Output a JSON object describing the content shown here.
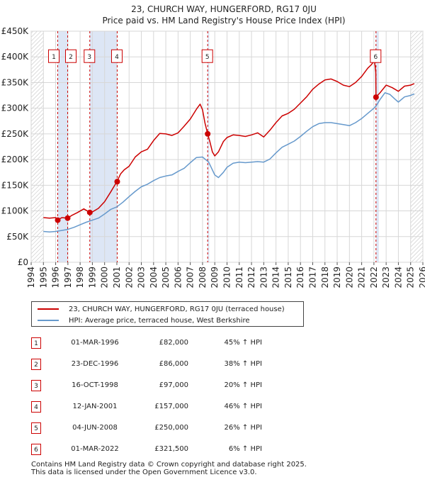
{
  "chart_data": {
    "type": "line",
    "title_line1": "23, CHURCH WAY, HUNGERFORD, RG17 0JU",
    "title_line2": "Price paid vs. HM Land Registry's House Price Index (HPI)",
    "xlim": [
      1994,
      2026
    ],
    "ylim": [
      0,
      450000
    ],
    "y_ticks": [
      {
        "value": 0,
        "label": "£0"
      },
      {
        "value": 50000,
        "label": "£50K"
      },
      {
        "value": 100000,
        "label": "£100K"
      },
      {
        "value": 150000,
        "label": "£150K"
      },
      {
        "value": 200000,
        "label": "£200K"
      },
      {
        "value": 250000,
        "label": "£250K"
      },
      {
        "value": 300000,
        "label": "£300K"
      },
      {
        "value": 350000,
        "label": "£350K"
      },
      {
        "value": 400000,
        "label": "£400K"
      },
      {
        "value": 450000,
        "label": "£450K"
      }
    ],
    "x_ticks": [
      "1994",
      "1995",
      "1996",
      "1997",
      "1998",
      "1999",
      "2000",
      "2001",
      "2002",
      "2003",
      "2004",
      "2005",
      "2006",
      "2007",
      "2008",
      "2009",
      "2010",
      "2011",
      "2012",
      "2013",
      "2014",
      "2015",
      "2016",
      "2017",
      "2018",
      "2019",
      "2020",
      "2021",
      "2022",
      "2023",
      "2024",
      "2025",
      "2026"
    ],
    "colors": {
      "price": "#cc0000",
      "hpi": "#6699cc",
      "shade": "#dde6f5",
      "grid": "#d7d7d7"
    },
    "shaded_ranges": [
      [
        1996.17,
        1996.98
      ],
      [
        1998.79,
        2001.03
      ],
      [
        2008.42,
        2008.55
      ],
      [
        2022.17,
        2022.4
      ]
    ],
    "hatched_ranges": [
      [
        1994.0,
        1995.0
      ],
      [
        2025.0,
        2026.0
      ]
    ],
    "series": [
      {
        "name": "23, CHURCH WAY, HUNGERFORD, RG17 0JU (terraced house)",
        "color": "#cc0000",
        "points": [
          [
            1995.0,
            87000
          ],
          [
            1995.5,
            86000
          ],
          [
            1996.0,
            87000
          ],
          [
            1996.17,
            82000
          ],
          [
            1996.5,
            87000
          ],
          [
            1996.98,
            86000
          ],
          [
            1997.3,
            91000
          ],
          [
            1997.8,
            97000
          ],
          [
            1998.3,
            104000
          ],
          [
            1998.79,
            97000
          ],
          [
            1999.0,
            98000
          ],
          [
            1999.5,
            105000
          ],
          [
            2000.0,
            118000
          ],
          [
            2000.5,
            137000
          ],
          [
            2001.0,
            157000
          ],
          [
            2001.3,
            172000
          ],
          [
            2001.6,
            180000
          ],
          [
            2002.0,
            187000
          ],
          [
            2002.5,
            205000
          ],
          [
            2003.0,
            215000
          ],
          [
            2003.5,
            220000
          ],
          [
            2004.0,
            237000
          ],
          [
            2004.5,
            251000
          ],
          [
            2005.0,
            250000
          ],
          [
            2005.5,
            247000
          ],
          [
            2006.0,
            252000
          ],
          [
            2006.5,
            265000
          ],
          [
            2007.0,
            279000
          ],
          [
            2007.5,
            298000
          ],
          [
            2007.8,
            308000
          ],
          [
            2008.0,
            297000
          ],
          [
            2008.2,
            271000
          ],
          [
            2008.42,
            250000
          ],
          [
            2008.6,
            235000
          ],
          [
            2008.8,
            215000
          ],
          [
            2009.0,
            207000
          ],
          [
            2009.3,
            215000
          ],
          [
            2009.7,
            235000
          ],
          [
            2010.0,
            243000
          ],
          [
            2010.5,
            248000
          ],
          [
            2011.0,
            247000
          ],
          [
            2011.5,
            245000
          ],
          [
            2012.0,
            248000
          ],
          [
            2012.5,
            252000
          ],
          [
            2013.0,
            244000
          ],
          [
            2013.5,
            257000
          ],
          [
            2014.0,
            272000
          ],
          [
            2014.5,
            285000
          ],
          [
            2015.0,
            290000
          ],
          [
            2015.5,
            298000
          ],
          [
            2016.0,
            310000
          ],
          [
            2016.5,
            322000
          ],
          [
            2017.0,
            337000
          ],
          [
            2017.5,
            347000
          ],
          [
            2018.0,
            355000
          ],
          [
            2018.5,
            357000
          ],
          [
            2019.0,
            352000
          ],
          [
            2019.5,
            345000
          ],
          [
            2020.0,
            342000
          ],
          [
            2020.5,
            350000
          ],
          [
            2021.0,
            362000
          ],
          [
            2021.5,
            378000
          ],
          [
            2021.8,
            385000
          ],
          [
            2022.05,
            393000
          ],
          [
            2022.15,
            370000
          ],
          [
            2022.17,
            321500
          ],
          [
            2022.5,
            330000
          ],
          [
            2023.0,
            345000
          ],
          [
            2023.5,
            340000
          ],
          [
            2024.0,
            333000
          ],
          [
            2024.5,
            343000
          ],
          [
            2025.0,
            345000
          ],
          [
            2025.3,
            348000
          ]
        ]
      },
      {
        "name": "HPI: Average price, terraced house, West Berkshire",
        "color": "#6699cc",
        "points": [
          [
            1995.0,
            60000
          ],
          [
            1995.5,
            59000
          ],
          [
            1996.0,
            60000
          ],
          [
            1996.5,
            62000
          ],
          [
            1997.0,
            64000
          ],
          [
            1997.5,
            68000
          ],
          [
            1998.0,
            73000
          ],
          [
            1998.5,
            78000
          ],
          [
            1999.0,
            82000
          ],
          [
            1999.5,
            86000
          ],
          [
            2000.0,
            94000
          ],
          [
            2000.5,
            103000
          ],
          [
            2001.0,
            108000
          ],
          [
            2001.5,
            117000
          ],
          [
            2002.0,
            128000
          ],
          [
            2002.5,
            138000
          ],
          [
            2003.0,
            147000
          ],
          [
            2003.5,
            152000
          ],
          [
            2004.0,
            159000
          ],
          [
            2004.5,
            165000
          ],
          [
            2005.0,
            168000
          ],
          [
            2005.5,
            170000
          ],
          [
            2006.0,
            177000
          ],
          [
            2006.5,
            183000
          ],
          [
            2007.0,
            194000
          ],
          [
            2007.5,
            204000
          ],
          [
            2008.0,
            205000
          ],
          [
            2008.5,
            195000
          ],
          [
            2009.0,
            170000
          ],
          [
            2009.3,
            165000
          ],
          [
            2009.7,
            175000
          ],
          [
            2010.0,
            185000
          ],
          [
            2010.5,
            193000
          ],
          [
            2011.0,
            195000
          ],
          [
            2011.5,
            194000
          ],
          [
            2012.0,
            195000
          ],
          [
            2012.5,
            196000
          ],
          [
            2013.0,
            195000
          ],
          [
            2013.5,
            201000
          ],
          [
            2014.0,
            213000
          ],
          [
            2014.5,
            224000
          ],
          [
            2015.0,
            230000
          ],
          [
            2015.5,
            236000
          ],
          [
            2016.0,
            245000
          ],
          [
            2016.5,
            255000
          ],
          [
            2017.0,
            264000
          ],
          [
            2017.5,
            270000
          ],
          [
            2018.0,
            272000
          ],
          [
            2018.5,
            272000
          ],
          [
            2019.0,
            270000
          ],
          [
            2019.5,
            268000
          ],
          [
            2020.0,
            266000
          ],
          [
            2020.5,
            272000
          ],
          [
            2021.0,
            280000
          ],
          [
            2021.5,
            290000
          ],
          [
            2022.0,
            300000
          ],
          [
            2022.2,
            305000
          ],
          [
            2022.5,
            317000
          ],
          [
            2022.9,
            330000
          ],
          [
            2023.3,
            327000
          ],
          [
            2023.7,
            318000
          ],
          [
            2024.0,
            312000
          ],
          [
            2024.5,
            322000
          ],
          [
            2025.0,
            325000
          ],
          [
            2025.3,
            328000
          ]
        ]
      }
    ],
    "transactions": [
      {
        "num": "1",
        "date": "01-MAR-1996",
        "x": 1996.17,
        "price_value": 82000,
        "price": "£82,000",
        "hpi": "45% ↑ HPI"
      },
      {
        "num": "2",
        "date": "23-DEC-1996",
        "x": 1996.98,
        "price_value": 86000,
        "price": "£86,000",
        "hpi": "38% ↑ HPI"
      },
      {
        "num": "3",
        "date": "16-OCT-1998",
        "x": 1998.79,
        "price_value": 97000,
        "price": "£97,000",
        "hpi": "20% ↑ HPI"
      },
      {
        "num": "4",
        "date": "12-JAN-2001",
        "x": 2001.03,
        "price_value": 157000,
        "price": "£157,000",
        "hpi": "46% ↑ HPI"
      },
      {
        "num": "5",
        "date": "04-JUN-2008",
        "x": 2008.42,
        "price_value": 250000,
        "price": "£250,000",
        "hpi": "26% ↑ HPI"
      },
      {
        "num": "6",
        "date": "01-MAR-2022",
        "x": 2022.17,
        "price_value": 321500,
        "price": "£321,500",
        "hpi": "6% ↑ HPI"
      }
    ],
    "label_row_value": 400000
  },
  "legend": {
    "price_label": "23, CHURCH WAY, HUNGERFORD, RG17 0JU (terraced house)",
    "hpi_label": "HPI: Average price, terraced house, West Berkshire"
  },
  "footer": {
    "line1": "Contains HM Land Registry data © Crown copyright and database right 2025.",
    "line2": "This data is licensed under the Open Government Licence v3.0."
  }
}
